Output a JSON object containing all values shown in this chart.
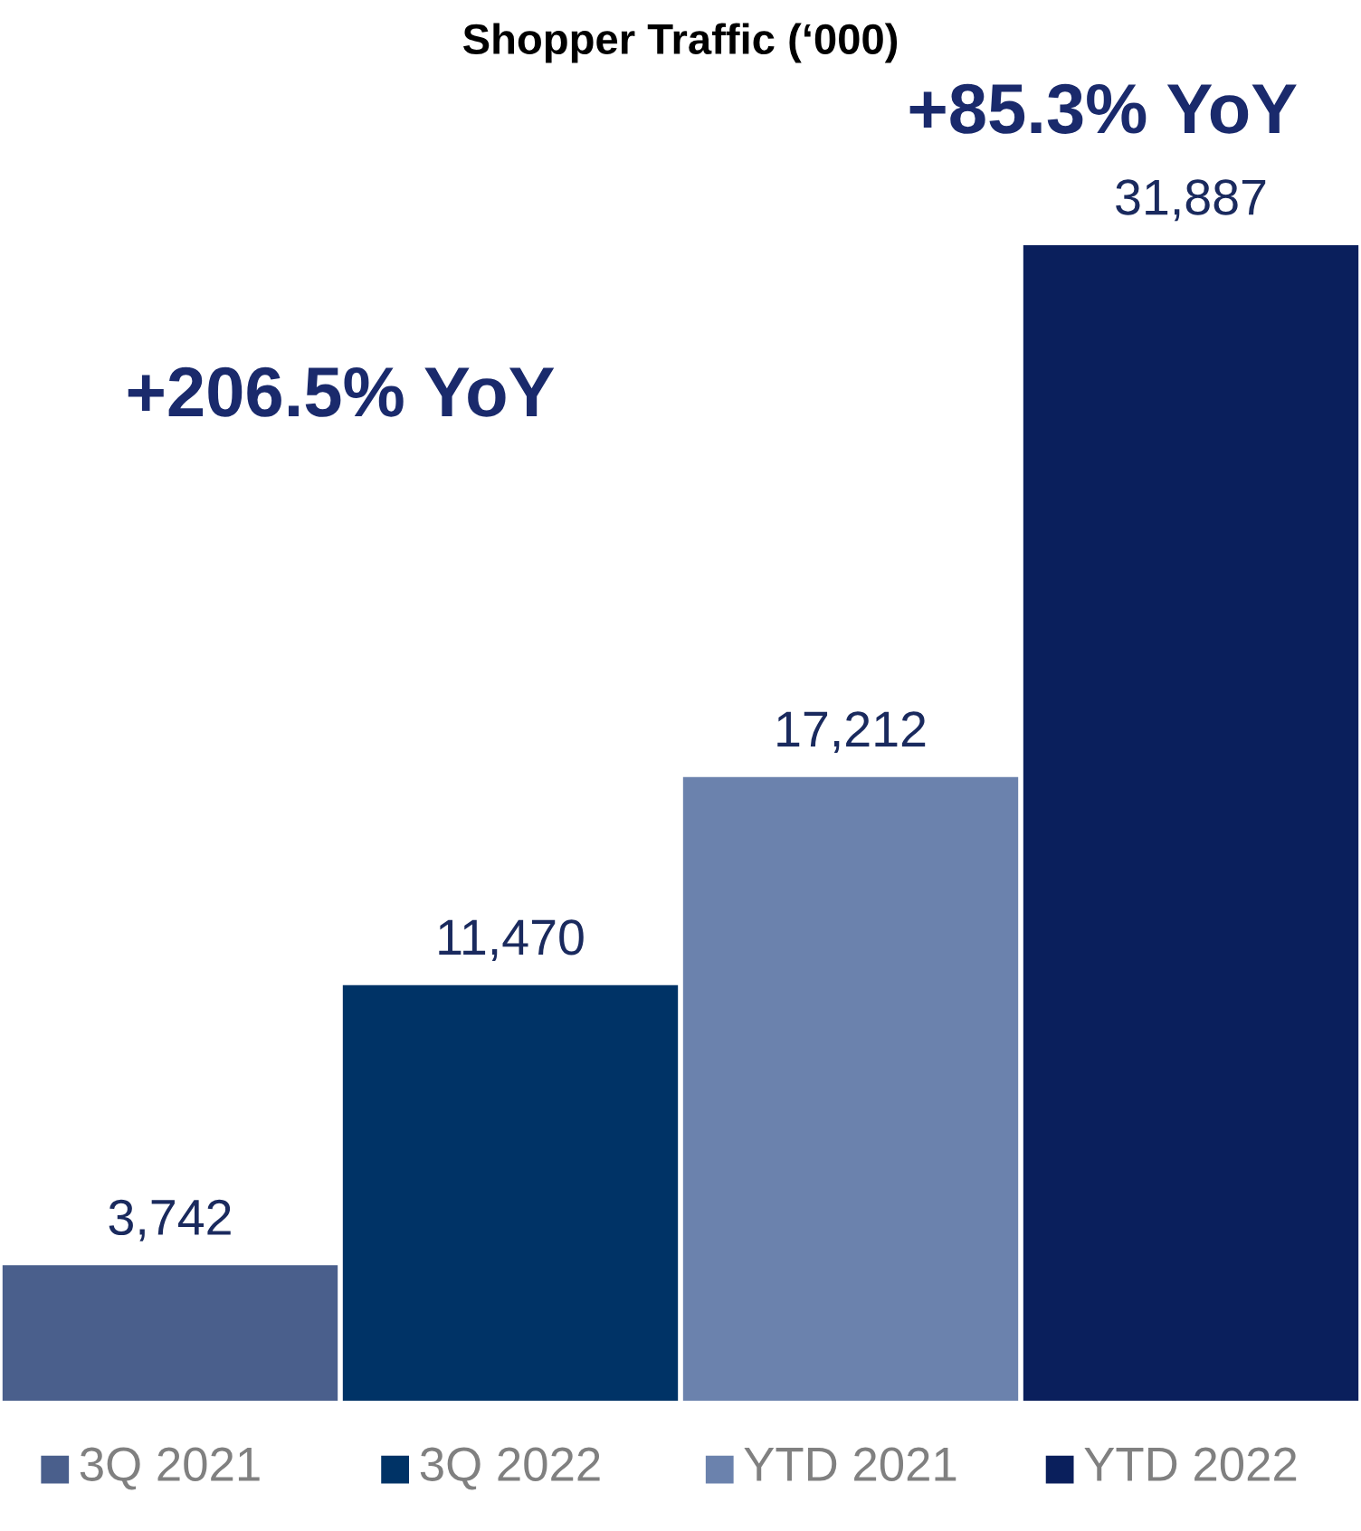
{
  "chart_data": {
    "type": "bar",
    "title": "Shopper Traffic (‘000)",
    "categories": [
      "3Q 2021",
      "3Q 2022",
      "YTD 2021",
      "YTD 2022"
    ],
    "values": [
      3742,
      11470,
      17212,
      31887
    ],
    "colors": [
      "#4a5f8c",
      "#003366",
      "#6b82ad",
      "#0a1f5c"
    ],
    "value_labels": [
      "3,742",
      "11,470",
      "17,212",
      "31,887"
    ],
    "annotations": [
      "+206.5% YoY",
      "+85.3% YoY"
    ]
  }
}
